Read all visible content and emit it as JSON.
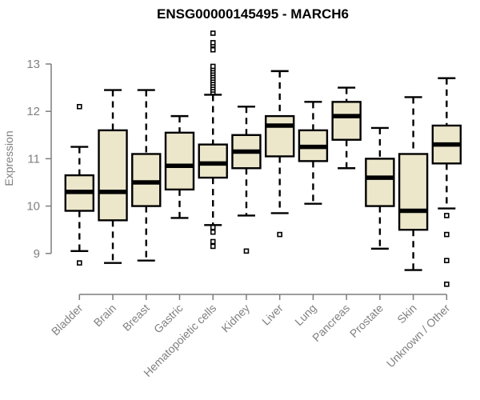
{
  "header": {
    "title": "ENSG00000145495 - MARCH6"
  },
  "chart_data": {
    "type": "boxplot",
    "title": "ENSG00000145495 - MARCH6",
    "ylabel": "Expression",
    "xlabel": "",
    "ylim": [
      9,
      13
    ],
    "yticks": [
      9,
      10,
      11,
      12,
      13
    ],
    "grid": false,
    "legend": false,
    "categories": [
      "Bladder",
      "Brain",
      "Breast",
      "Gastric",
      "Hematopoietic cells",
      "Kidney",
      "Liver",
      "Lung",
      "Pancreas",
      "Prostate",
      "Skin",
      "Unknown / Other"
    ],
    "series": [
      {
        "name": "Bladder",
        "whisker_low": 9.05,
        "q1": 9.9,
        "median": 10.3,
        "q3": 10.65,
        "whisker_high": 11.25,
        "outliers": [
          8.8,
          12.1
        ]
      },
      {
        "name": "Brain",
        "whisker_low": 8.8,
        "q1": 9.7,
        "median": 10.3,
        "q3": 11.6,
        "whisker_high": 12.45,
        "outliers": []
      },
      {
        "name": "Breast",
        "whisker_low": 8.85,
        "q1": 10.0,
        "median": 10.5,
        "q3": 11.1,
        "whisker_high": 12.45,
        "outliers": []
      },
      {
        "name": "Gastric",
        "whisker_low": 9.75,
        "q1": 10.35,
        "median": 10.85,
        "q3": 11.55,
        "whisker_high": 11.9,
        "outliers": []
      },
      {
        "name": "Hematopoietic cells",
        "whisker_low": 9.6,
        "q1": 10.6,
        "median": 10.9,
        "q3": 11.3,
        "whisker_high": 12.35,
        "outliers": [
          9.15,
          9.25,
          9.45,
          9.55,
          12.4,
          12.45,
          12.5,
          12.55,
          12.6,
          12.65,
          12.7,
          12.75,
          12.8,
          12.85,
          12.9,
          12.95,
          13.3,
          13.4,
          13.45,
          13.65
        ]
      },
      {
        "name": "Kidney",
        "whisker_low": 9.8,
        "q1": 10.8,
        "median": 11.15,
        "q3": 11.5,
        "whisker_high": 12.1,
        "outliers": [
          9.05
        ]
      },
      {
        "name": "Liver",
        "whisker_low": 9.85,
        "q1": 11.05,
        "median": 11.7,
        "q3": 11.9,
        "whisker_high": 12.85,
        "outliers": [
          9.4
        ]
      },
      {
        "name": "Lung",
        "whisker_low": 10.05,
        "q1": 10.95,
        "median": 11.25,
        "q3": 11.6,
        "whisker_high": 12.2,
        "outliers": []
      },
      {
        "name": "Pancreas",
        "whisker_low": 10.8,
        "q1": 11.4,
        "median": 11.9,
        "q3": 12.2,
        "whisker_high": 12.5,
        "outliers": []
      },
      {
        "name": "Prostate",
        "whisker_low": 9.1,
        "q1": 10.0,
        "median": 10.6,
        "q3": 11.0,
        "whisker_high": 11.65,
        "outliers": []
      },
      {
        "name": "Skin",
        "whisker_low": 8.65,
        "q1": 9.5,
        "median": 9.9,
        "q3": 11.1,
        "whisker_high": 12.3,
        "outliers": []
      },
      {
        "name": "Unknown / Other",
        "whisker_low": 9.95,
        "q1": 10.9,
        "median": 11.3,
        "q3": 11.7,
        "whisker_high": 12.7,
        "outliers": [
          8.35,
          8.85,
          9.4,
          9.8
        ]
      }
    ],
    "colors": {
      "box_fill": "#ece7cb",
      "box_stroke": "#000000",
      "median": "#000000",
      "axis": "#7d7d7d",
      "tick_label": "#808080",
      "title": "#000000",
      "background": "#ffffff"
    }
  }
}
